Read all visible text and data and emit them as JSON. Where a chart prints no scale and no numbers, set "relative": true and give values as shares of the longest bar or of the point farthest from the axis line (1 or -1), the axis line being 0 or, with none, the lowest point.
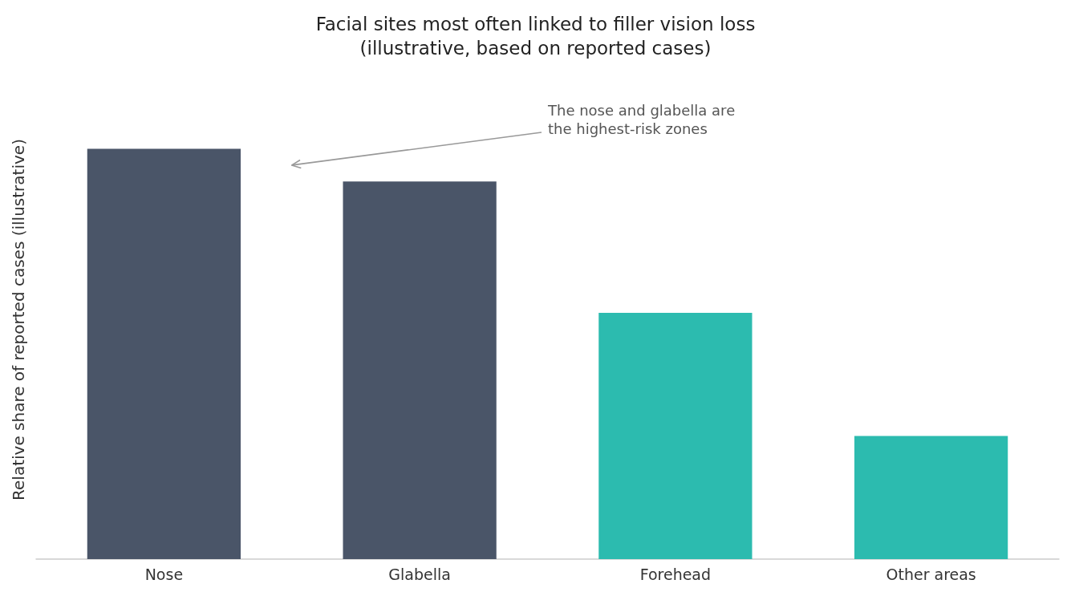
{
  "chart_data": {
    "type": "bar",
    "title": "Facial sites most often linked to filler vision loss\n(illustrative, based on reported cases)",
    "ylabel": "Relative share of reported cases (illustrative)",
    "annotations": [
      "The nose and glabella are\nthe highest-risk zones"
    ],
    "categories": [
      "Nose",
      "Glabella",
      "Forehead",
      "Other areas"
    ],
    "values": [
      1,
      0.92,
      0.6,
      0.3
    ],
    "colors": [
      "#4a5568",
      "#4a5568",
      "#2cbbaf",
      "#2cbbaf"
    ],
    "relative": true
  }
}
